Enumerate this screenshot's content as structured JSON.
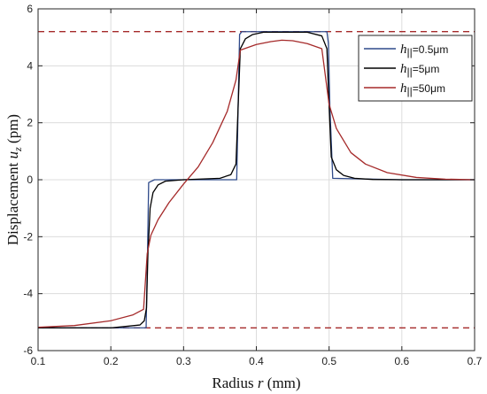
{
  "chart_data": {
    "type": "line",
    "xlabel": "Radius",
    "xlabel_symbol": "r",
    "xlabel_unit": "(mm)",
    "ylabel": "Displacement",
    "ylabel_symbol": "u",
    "ylabel_subscript": "z",
    "ylabel_unit": "(pm)",
    "xlim": [
      0.1,
      0.7
    ],
    "ylim": [
      -6,
      6
    ],
    "x_ticks": [
      0.1,
      0.2,
      0.3,
      0.4,
      0.5,
      0.6,
      0.7
    ],
    "x_tick_labels": [
      "0.1",
      "0.2",
      "0.3",
      "0.4",
      "0.5",
      "0.6",
      "0.7"
    ],
    "y_ticks": [
      -6,
      -4,
      -2,
      0,
      2,
      4,
      6
    ],
    "y_tick_labels": [
      "-6",
      "-4",
      "-2",
      "0",
      "2",
      "4",
      "6"
    ],
    "grid": true,
    "legend_position": "top-right",
    "reference_lines": [
      {
        "y": 5.2,
        "color": "#a52a2a",
        "style": "dashed"
      },
      {
        "y": -5.2,
        "color": "#a52a2a",
        "style": "dashed"
      }
    ],
    "series": [
      {
        "name": "=0.5μm",
        "legend_symbol": "h",
        "legend_subscript": "||",
        "color": "#2f4a8a",
        "x": [
          0.1,
          0.2485,
          0.2505,
          0.252,
          0.26,
          0.373,
          0.375,
          0.377,
          0.38,
          0.497,
          0.499,
          0.501,
          0.505,
          0.6,
          0.7
        ],
        "y": [
          -5.2,
          -5.2,
          -2.5,
          -0.1,
          0.0,
          0.0,
          2.6,
          5.1,
          5.2,
          5.2,
          4.8,
          2.6,
          0.05,
          0.0,
          0.0
        ]
      },
      {
        "name": "=5μm",
        "legend_symbol": "h",
        "legend_subscript": "||",
        "color": "#000000",
        "x": [
          0.1,
          0.2,
          0.24,
          0.246,
          0.249,
          0.251,
          0.254,
          0.258,
          0.265,
          0.275,
          0.3,
          0.35,
          0.365,
          0.372,
          0.375,
          0.378,
          0.385,
          0.395,
          0.41,
          0.47,
          0.49,
          0.497,
          0.5,
          0.503,
          0.51,
          0.52,
          0.535,
          0.56,
          0.6,
          0.7
        ],
        "y": [
          -5.2,
          -5.2,
          -5.1,
          -4.95,
          -4.5,
          -2.6,
          -1.0,
          -0.45,
          -0.18,
          -0.05,
          0.0,
          0.05,
          0.18,
          0.55,
          2.6,
          4.6,
          4.95,
          5.1,
          5.18,
          5.18,
          5.05,
          4.6,
          2.6,
          0.8,
          0.35,
          0.15,
          0.05,
          0.01,
          0.0,
          0.0
        ]
      },
      {
        "name": "=50μm",
        "legend_symbol": "h",
        "legend_subscript": "||",
        "color": "#a52a2a",
        "x": [
          0.1,
          0.15,
          0.2,
          0.23,
          0.245,
          0.25,
          0.255,
          0.265,
          0.28,
          0.3,
          0.32,
          0.34,
          0.36,
          0.372,
          0.378,
          0.4,
          0.42,
          0.435,
          0.45,
          0.47,
          0.49,
          0.5,
          0.51,
          0.53,
          0.55,
          0.58,
          0.62,
          0.66,
          0.7
        ],
        "y": [
          -5.18,
          -5.12,
          -4.95,
          -4.75,
          -4.55,
          -2.6,
          -1.95,
          -1.4,
          -0.8,
          -0.15,
          0.45,
          1.3,
          2.4,
          3.5,
          4.55,
          4.75,
          4.85,
          4.9,
          4.88,
          4.78,
          4.6,
          2.65,
          1.8,
          0.95,
          0.55,
          0.25,
          0.08,
          0.02,
          0.0
        ]
      }
    ]
  }
}
